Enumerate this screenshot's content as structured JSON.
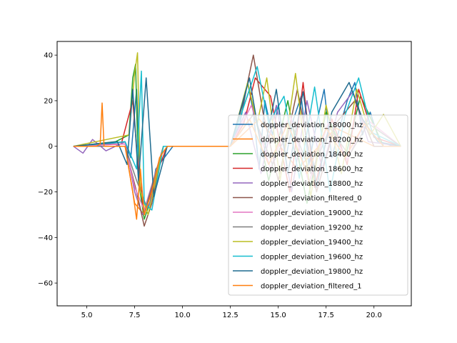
{
  "chart_data": {
    "type": "line",
    "title": "",
    "xlabel": "",
    "ylabel": "",
    "xlim": [
      3.45,
      21.95
    ],
    "ylim": [
      -70,
      46
    ],
    "xticks": [
      5.0,
      7.5,
      10.0,
      12.5,
      15.0,
      17.5,
      20.0
    ],
    "xtick_labels": [
      "5.0",
      "7.5",
      "10.0",
      "12.5",
      "15.0",
      "17.5",
      "20.0"
    ],
    "yticks": [
      -60,
      -40,
      -20,
      0,
      20,
      40
    ],
    "ytick_labels": [
      "−60",
      "−40",
      "−20",
      "0",
      "20",
      "40"
    ],
    "grid": false,
    "legend_position": "lower-right",
    "series": [
      {
        "name": "doppler_deviation_18000_hz",
        "color": "#1f77b4",
        "x": [
          4.3,
          6.0,
          7.0,
          7.3,
          7.45,
          7.6,
          7.8,
          8.0,
          8.3,
          8.6,
          9.5,
          11.0,
          12.5,
          13.0,
          13.4,
          13.7,
          14.0,
          14.3,
          14.7,
          15.0,
          15.4,
          15.8,
          16.2,
          16.6,
          17.0,
          17.4,
          17.8,
          18.2,
          18.6,
          19.0,
          19.4,
          19.8,
          20.3,
          21.0,
          21.4
        ],
        "y": [
          0,
          1,
          2,
          -5,
          10,
          25,
          -20,
          -28,
          -25,
          -10,
          0,
          0,
          0,
          10,
          28,
          15,
          -10,
          20,
          5,
          18,
          -5,
          12,
          22,
          -8,
          10,
          25,
          -5,
          8,
          20,
          28,
          5,
          15,
          2,
          0,
          0
        ]
      },
      {
        "name": "doppler_deviation_18200_hz",
        "color": "#ff7f0e",
        "x": [
          4.3,
          7.0,
          7.5,
          8.0,
          9.0,
          12.5,
          14.0,
          16.0,
          18.0,
          20.0,
          21.4
        ],
        "y": [
          0,
          0,
          -25,
          -30,
          0,
          0,
          12,
          -10,
          8,
          0,
          0
        ]
      },
      {
        "name": "doppler_deviation_18400_hz",
        "color": "#2ca02c",
        "x": [
          4.3,
          6.5,
          7.2,
          7.4,
          7.55,
          7.7,
          8.0,
          8.4,
          9.0,
          12.5,
          13.5,
          14.5,
          15.5,
          16.5,
          17.5,
          18.5,
          19.3,
          20.5,
          21.4
        ],
        "y": [
          0,
          2,
          5,
          30,
          36,
          -15,
          -32,
          -22,
          0,
          0,
          25,
          -15,
          20,
          -25,
          15,
          -5,
          22,
          0,
          0
        ]
      },
      {
        "name": "doppler_deviation_18600_hz",
        "color": "#d62728",
        "x": [
          4.3,
          6.8,
          7.4,
          7.7,
          8.0,
          8.5,
          9.2,
          12.5,
          13.2,
          13.8,
          14.6,
          15.6,
          16.3,
          16.9,
          17.8,
          18.6,
          19.2,
          20.0,
          21.4
        ],
        "y": [
          0,
          1,
          20,
          -10,
          -30,
          -15,
          0,
          0,
          10,
          30,
          22,
          -20,
          28,
          -18,
          12,
          -8,
          25,
          4,
          0
        ]
      },
      {
        "name": "doppler_deviation_18800_hz",
        "color": "#9467bd",
        "x": [
          4.3,
          4.8,
          5.3,
          6.0,
          7.0,
          7.5,
          7.9,
          8.3,
          9.0,
          12.5,
          13.3,
          14.1,
          14.9,
          15.7,
          16.5,
          17.3,
          18.1,
          18.9,
          19.7,
          21.4
        ],
        "y": [
          0,
          -3,
          3,
          -2,
          2,
          -20,
          -30,
          -25,
          0,
          0,
          15,
          -12,
          18,
          -20,
          20,
          -10,
          15,
          24,
          2,
          0
        ]
      },
      {
        "name": "doppler_deviation_filtered_0",
        "color": "#8c564b",
        "x": [
          4.3,
          7.0,
          7.6,
          8.0,
          8.4,
          9.0,
          12.5,
          13.2,
          13.7,
          14.2,
          15.0,
          16.0,
          17.0,
          18.0,
          19.0,
          20.0,
          21.4
        ],
        "y": [
          0,
          0,
          -20,
          -35,
          -25,
          0,
          0,
          20,
          40,
          15,
          -15,
          25,
          -20,
          10,
          20,
          0,
          0
        ]
      },
      {
        "name": "doppler_deviation_19000_hz",
        "color": "#e377c2",
        "x": [
          4.3,
          7.0,
          7.5,
          8.0,
          9.0,
          12.5,
          13.6,
          14.6,
          15.6,
          16.6,
          17.6,
          18.6,
          19.6,
          21.4
        ],
        "y": [
          0,
          1,
          -18,
          -28,
          0,
          0,
          18,
          -10,
          14,
          -16,
          10,
          -6,
          12,
          0
        ]
      },
      {
        "name": "doppler_deviation_19200_hz",
        "color": "#7f7f7f",
        "x": [
          4.3,
          7.0,
          7.6,
          8.1,
          9.0,
          12.5,
          13.7,
          14.7,
          15.7,
          16.7,
          17.7,
          18.7,
          19.7,
          21.4
        ],
        "y": [
          0,
          0,
          -15,
          -26,
          0,
          0,
          14,
          -8,
          10,
          -12,
          8,
          -4,
          10,
          0
        ]
      },
      {
        "name": "doppler_deviation_19400_hz",
        "color": "#bcbd22",
        "x": [
          4.3,
          7.2,
          7.5,
          7.65,
          7.8,
          8.2,
          9.0,
          12.5,
          13.4,
          13.9,
          14.4,
          15.1,
          15.9,
          16.7,
          17.5,
          18.3,
          19.1,
          19.8,
          20.5,
          21.4
        ],
        "y": [
          0,
          5,
          32,
          41,
          -20,
          -30,
          0,
          0,
          28,
          10,
          30,
          -15,
          32,
          -22,
          18,
          -12,
          25,
          5,
          14,
          0
        ]
      },
      {
        "name": "doppler_deviation_19600_hz",
        "color": "#17becf",
        "x": [
          4.3,
          7.0,
          7.6,
          7.85,
          8.0,
          8.4,
          9.0,
          12.5,
          13.3,
          13.9,
          14.5,
          15.3,
          16.1,
          16.9,
          17.7,
          18.5,
          19.2,
          19.9,
          21.4
        ],
        "y": [
          0,
          2,
          -10,
          33,
          -25,
          -28,
          0,
          0,
          20,
          35,
          10,
          22,
          -14,
          26,
          -20,
          14,
          30,
          6,
          0
        ]
      },
      {
        "name": "doppler_deviation_19800_hz",
        "color": "#1f6b8f",
        "x": [
          4.3,
          6.6,
          7.1,
          7.4,
          7.7,
          8.1,
          8.5,
          9.2,
          12.5,
          13.5,
          14.2,
          14.9,
          15.5,
          16.3,
          17.0,
          17.8,
          18.7,
          19.4,
          20.2,
          21.4
        ],
        "y": [
          0,
          2,
          -8,
          25,
          -15,
          30,
          -22,
          0,
          0,
          30,
          -5,
          25,
          -12,
          24,
          -18,
          15,
          28,
          12,
          2,
          0
        ]
      },
      {
        "name": "doppler_deviation_filtered_1",
        "color": "#ff7f0e",
        "x": [
          4.3,
          5.5,
          5.7,
          5.8,
          5.9,
          7.0,
          7.4,
          7.6,
          7.8,
          8.0,
          8.4,
          8.8,
          9.2,
          12.5,
          13.5,
          14.5,
          15.5,
          16.5,
          17.5,
          18.5,
          19.5,
          20.5,
          21.4
        ],
        "y": [
          0,
          0,
          1,
          19,
          0,
          0,
          -20,
          -32,
          -10,
          -30,
          -20,
          -5,
          0,
          0,
          12,
          -8,
          10,
          -12,
          8,
          -5,
          10,
          0,
          0
        ]
      }
    ]
  }
}
